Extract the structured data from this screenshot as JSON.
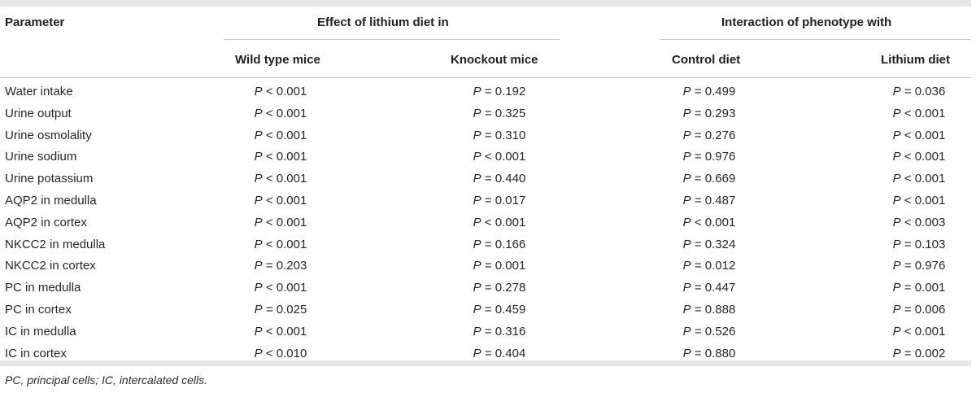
{
  "table": {
    "header": {
      "parameter": "Parameter",
      "group_effect": "Effect of lithium diet in",
      "group_interaction": "Interaction of phenotype with",
      "columns": [
        "Wild type mice",
        "Knockout mice",
        "Control diet",
        "Lithium diet"
      ]
    },
    "rows": [
      {
        "label": "Water intake",
        "values": [
          "< 0.001",
          "= 0.192",
          "= 0.499",
          "= 0.036"
        ]
      },
      {
        "label": "Urine output",
        "values": [
          "< 0.001",
          "= 0.325",
          "= 0.293",
          "< 0.001"
        ]
      },
      {
        "label": "Urine osmolality",
        "values": [
          "< 0.001",
          "= 0.310",
          "= 0.276",
          "< 0.001"
        ]
      },
      {
        "label": "Urine sodium",
        "values": [
          "< 0.001",
          "< 0.001",
          "= 0.976",
          "< 0.001"
        ]
      },
      {
        "label": "Urine potassium",
        "values": [
          "< 0.001",
          "= 0.440",
          "= 0.669",
          "< 0.001"
        ]
      },
      {
        "label": "AQP2 in medulla",
        "values": [
          "< 0.001",
          "= 0.017",
          "= 0.487",
          "< 0.001"
        ]
      },
      {
        "label": "AQP2 in cortex",
        "values": [
          "< 0.001",
          "< 0.001",
          "< 0.001",
          "< 0.003"
        ]
      },
      {
        "label": "NKCC2 in medulla",
        "values": [
          "< 0.001",
          "= 0.166",
          "= 0.324",
          "= 0.103"
        ]
      },
      {
        "label": "NKCC2 in cortex",
        "values": [
          "= 0.203",
          "= 0.001",
          "= 0.012",
          "= 0.976"
        ]
      },
      {
        "label": "PC in medulla",
        "values": [
          "< 0.001",
          "= 0.278",
          "= 0.447",
          "= 0.001"
        ]
      },
      {
        "label": "PC in cortex",
        "values": [
          "= 0.025",
          "= 0.459",
          "= 0.888",
          "= 0.006"
        ]
      },
      {
        "label": "IC in medulla",
        "values": [
          "< 0.001",
          "= 0.316",
          "= 0.526",
          "< 0.001"
        ]
      },
      {
        "label": "IC in cortex",
        "values": [
          "< 0.010",
          "= 0.404",
          "= 0.880",
          "= 0.002"
        ]
      }
    ],
    "p_symbol": "P",
    "footnote": "PC, principal cells; IC, intercalated cells."
  }
}
